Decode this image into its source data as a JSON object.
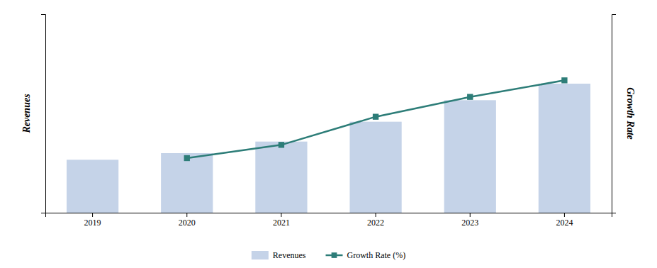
{
  "chart_data": {
    "type": "bar",
    "categories": [
      "2019",
      "2020",
      "2021",
      "2022",
      "2023",
      "2024"
    ],
    "series": [
      {
        "name": "Revenues",
        "type": "bar",
        "color": "#c5d3e8",
        "values": [
          3.2,
          3.6,
          4.3,
          5.5,
          6.8,
          7.8
        ]
      },
      {
        "name": "Growth Rate (%)",
        "type": "line",
        "axis": "y2",
        "color": "#2d7d78",
        "marker": "square",
        "line_style": "solid",
        "values": [
          null,
          3.3,
          4.1,
          5.8,
          7.0,
          8.0
        ]
      }
    ],
    "ylabel": "Revenues",
    "y2label": "Growth Rate",
    "ylim": [
      0,
      12
    ],
    "y2lim": [
      0,
      12
    ],
    "tick_labels": "x",
    "grid": false,
    "legend": "bottom"
  }
}
